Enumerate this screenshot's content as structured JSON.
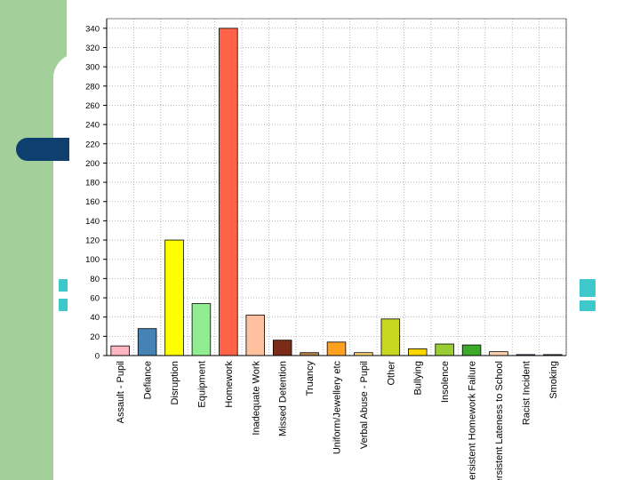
{
  "theme": {
    "band_color": "#a3cf9b",
    "pill_color": "#0e3f6e",
    "accent_color": "#3fc8cc"
  },
  "chart_data": {
    "type": "bar",
    "title": "",
    "xlabel": "",
    "ylabel": "",
    "ylim": [
      0,
      350
    ],
    "yticks": [
      0,
      20,
      40,
      60,
      80,
      100,
      120,
      140,
      160,
      180,
      200,
      220,
      240,
      260,
      280,
      300,
      320,
      340
    ],
    "ytick_labels": [
      "0",
      "20",
      "40",
      "60",
      "80",
      "100",
      "120",
      "140",
      "160",
      "180",
      "200",
      "220",
      "240",
      "260",
      "280",
      "300",
      "320",
      "340"
    ],
    "grid": true,
    "categories": [
      "Assault - Pupil",
      "Defiance",
      "Disruption",
      "Equipment",
      "Homework",
      "Inadequate Work",
      "Missed Detention",
      "Truancy",
      "Uniform/Jewellery etc",
      "Verbal Abuse - Pupil",
      "Other",
      "Bullying",
      "Insolence",
      "Persistent Homework Failure",
      "Persistent Lateness to School",
      "Racist Incident",
      "Smoking"
    ],
    "values": [
      10,
      28,
      120,
      54,
      340,
      42,
      16,
      3,
      14,
      3,
      38,
      7,
      12,
      11,
      4,
      1,
      1
    ],
    "colors": [
      "#ffb6c1",
      "#4682b4",
      "#ffff00",
      "#90ee90",
      "#ff6347",
      "#ffc0a0",
      "#7b2c18",
      "#b8864b",
      "#ffa020",
      "#ffd870",
      "#c8d820",
      "#ffd700",
      "#9acd32",
      "#3aaa28",
      "#ffd0b0",
      "#6a6ac0",
      "#606060"
    ]
  }
}
